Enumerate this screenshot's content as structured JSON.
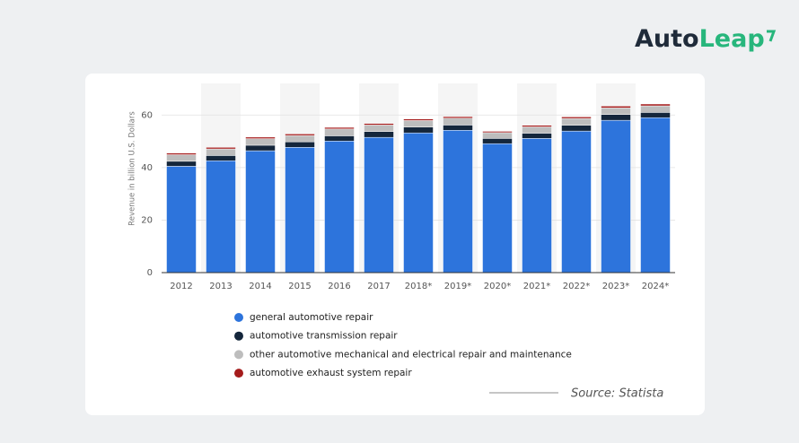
{
  "brand": [
    "Auto",
    "Leap"
  ],
  "source": "Source: Statista",
  "chart_data": {
    "type": "stacked_bar",
    "y_label": "Revenue in billion U.S. Dollars",
    "categories": [
      "2012",
      "2013",
      "2014",
      "2015",
      "2016",
      "2017",
      "2018*",
      "2019*",
      "2020*",
      "2021*",
      "2022*",
      "2023*",
      "2024*"
    ],
    "series": [
      {
        "name": "general automotive repair",
        "color": "#2d74dc",
        "values": [
          40.5,
          42.6,
          46.4,
          47.7,
          50.1,
          51.5,
          53.2,
          54.2,
          49.1,
          51.1,
          53.9,
          58.0,
          59.0
        ]
      },
      {
        "name": "automotive transmission repair",
        "color": "#14263b",
        "values": [
          1.9,
          2.0,
          2.1,
          2.1,
          2.0,
          2.2,
          2.2,
          2.0,
          2.0,
          2.0,
          2.2,
          2.2,
          2.0
        ]
      },
      {
        "name": "other automotive mechanical and electrical repair and maintenance",
        "color": "#bdbdbd",
        "values": [
          2.5,
          2.5,
          2.5,
          2.4,
          2.6,
          2.5,
          2.5,
          2.6,
          2.2,
          2.4,
          2.6,
          2.5,
          2.5
        ]
      },
      {
        "name": "automotive exhaust system repair",
        "color": "#a51c1c",
        "values": [
          0.6,
          0.6,
          0.6,
          0.6,
          0.6,
          0.6,
          0.6,
          0.6,
          0.5,
          0.6,
          0.6,
          0.7,
          0.7
        ]
      }
    ],
    "ylim": [
      0,
      70
    ],
    "yticks": [
      0,
      20,
      40,
      60
    ],
    "grid": true
  }
}
